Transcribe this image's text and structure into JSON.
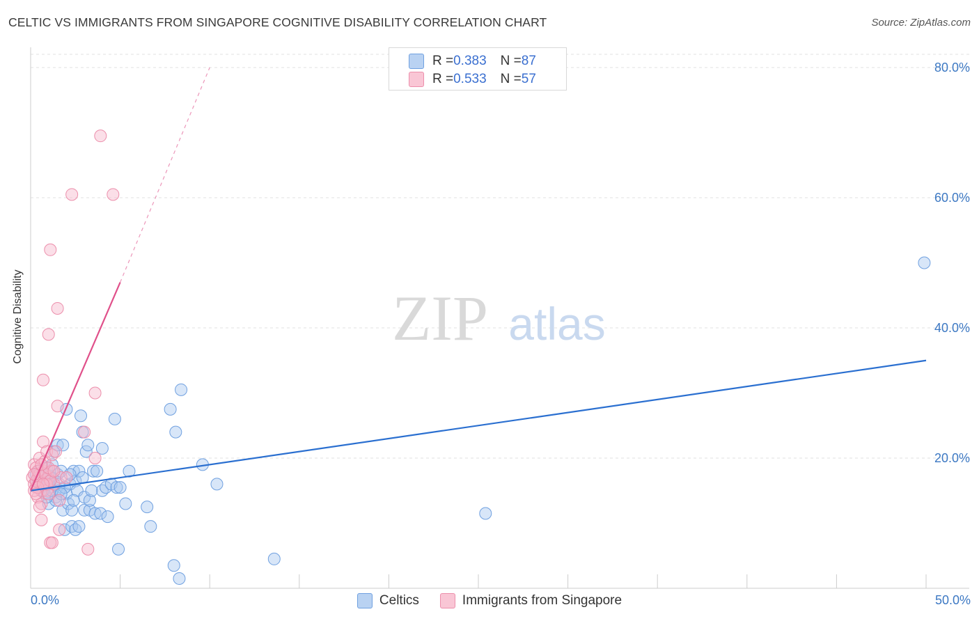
{
  "header": {
    "title": "CELTIC VS IMMIGRANTS FROM SINGAPORE COGNITIVE DISABILITY CORRELATION CHART",
    "source": "Source: ZipAtlas.com"
  },
  "legend": {
    "rows": [
      {
        "r_label": "R = ",
        "r_value": "0.383",
        "n_label": "N = ",
        "n_value": "87"
      },
      {
        "r_label": "R = ",
        "r_value": "0.533",
        "n_label": "N = ",
        "n_value": "57"
      }
    ]
  },
  "bottom_legend": {
    "celtics": "Celtics",
    "singapore": "Immigrants from Singapore"
  },
  "watermark": {
    "zip": "ZIP",
    "atlas": "atlas"
  },
  "colors": {
    "celtics_fill": "#a9c8f0",
    "celtics_stroke": "#6fa0e0",
    "celtics_line": "#2a6fd0",
    "singapore_fill": "#f7b8cb",
    "singapore_stroke": "#ec8eab",
    "singapore_line": "#e0508a",
    "axis_text": "#3c78c3"
  },
  "chart_data": {
    "type": "scatter",
    "title": "CELTIC VS IMMIGRANTS FROM SINGAPORE COGNITIVE DISABILITY CORRELATION CHART",
    "xlabel": "",
    "ylabel": "Cognitive Disability",
    "xlim": [
      0,
      50
    ],
    "ylim": [
      0,
      80
    ],
    "x_tick_labels": [
      "0.0%",
      "50.0%"
    ],
    "y_ticks": [
      20,
      40,
      60,
      80
    ],
    "y_tick_labels": [
      "20.0%",
      "40.0%",
      "60.0%",
      "80.0%"
    ],
    "grid": true,
    "legend_position": "top-center",
    "series": [
      {
        "name": "Celtics",
        "r": 0.383,
        "n": 87,
        "trend": {
          "x0": 0,
          "y0": 15.0,
          "x1": 50,
          "y1": 35.0
        },
        "points": [
          [
            0.3,
            17.5
          ],
          [
            0.4,
            16.5
          ],
          [
            0.5,
            18.0
          ],
          [
            0.5,
            16.0
          ],
          [
            0.6,
            15.0
          ],
          [
            0.7,
            17.0
          ],
          [
            0.8,
            14.5
          ],
          [
            0.8,
            16.0
          ],
          [
            0.9,
            18.5
          ],
          [
            1.0,
            13.0
          ],
          [
            1.0,
            16.5
          ],
          [
            1.1,
            15.5
          ],
          [
            1.2,
            17.0
          ],
          [
            1.2,
            19.0
          ],
          [
            1.3,
            21.0
          ],
          [
            1.4,
            14.0
          ],
          [
            1.4,
            13.5
          ],
          [
            1.5,
            17.5
          ],
          [
            1.5,
            22.0
          ],
          [
            1.6,
            16.0
          ],
          [
            1.7,
            18.0
          ],
          [
            1.8,
            12.0
          ],
          [
            1.8,
            22.0
          ],
          [
            1.9,
            9.0
          ],
          [
            2.0,
            27.5
          ],
          [
            2.0,
            14.5
          ],
          [
            2.1,
            13.0
          ],
          [
            2.2,
            16.0
          ],
          [
            2.3,
            9.5
          ],
          [
            2.3,
            12.0
          ],
          [
            2.4,
            18.0
          ],
          [
            2.5,
            16.5
          ],
          [
            2.5,
            9.0
          ],
          [
            2.6,
            15.0
          ],
          [
            2.7,
            9.5
          ],
          [
            2.7,
            18.0
          ],
          [
            2.8,
            26.5
          ],
          [
            2.9,
            24.0
          ],
          [
            2.9,
            17.0
          ],
          [
            3.0,
            14.0
          ],
          [
            3.0,
            12.0
          ],
          [
            3.1,
            21.0
          ],
          [
            3.2,
            22.0
          ],
          [
            3.3,
            12.0
          ],
          [
            3.3,
            13.5
          ],
          [
            3.5,
            18.0
          ],
          [
            3.6,
            11.5
          ],
          [
            3.7,
            18.0
          ],
          [
            3.9,
            11.5
          ],
          [
            4.0,
            21.5
          ],
          [
            4.0,
            15.0
          ],
          [
            4.2,
            15.5
          ],
          [
            4.3,
            11.0
          ],
          [
            4.5,
            16.0
          ],
          [
            4.7,
            26.0
          ],
          [
            4.8,
            15.5
          ],
          [
            4.9,
            6.0
          ],
          [
            5.0,
            15.5
          ],
          [
            5.3,
            13.0
          ],
          [
            5.5,
            18.0
          ],
          [
            6.5,
            12.5
          ],
          [
            6.7,
            9.5
          ],
          [
            7.8,
            27.5
          ],
          [
            8.0,
            3.5
          ],
          [
            8.1,
            24.0
          ],
          [
            8.3,
            1.5
          ],
          [
            8.4,
            30.5
          ],
          [
            9.6,
            19.0
          ],
          [
            10.4,
            16.0
          ],
          [
            13.6,
            4.5
          ],
          [
            25.4,
            11.5
          ],
          [
            49.9,
            50.0
          ],
          [
            0.6,
            15.5
          ],
          [
            0.9,
            14.0
          ],
          [
            1.1,
            17.0
          ],
          [
            1.3,
            16.0
          ],
          [
            1.6,
            15.0
          ],
          [
            2.2,
            17.5
          ],
          [
            0.5,
            17.0
          ],
          [
            0.7,
            15.0
          ],
          [
            1.0,
            16.0
          ],
          [
            1.9,
            15.5
          ],
          [
            2.4,
            13.5
          ],
          [
            3.4,
            15.0
          ],
          [
            0.8,
            17.5
          ],
          [
            1.2,
            15.0
          ],
          [
            1.7,
            14.5
          ]
        ]
      },
      {
        "name": "Immigrants from Singapore",
        "r": 0.533,
        "n": 57,
        "trend": {
          "x0": 0,
          "y0": 15.0,
          "x1": 5.0,
          "y1": 47.0,
          "dashed_to": {
            "x": 10.0,
            "y": 80.0
          }
        },
        "points": [
          [
            0.1,
            17.0
          ],
          [
            0.2,
            16.0
          ],
          [
            0.2,
            19.0
          ],
          [
            0.3,
            18.5
          ],
          [
            0.3,
            15.5
          ],
          [
            0.4,
            17.0
          ],
          [
            0.4,
            14.0
          ],
          [
            0.5,
            20.0
          ],
          [
            0.5,
            17.5
          ],
          [
            0.5,
            16.5
          ],
          [
            0.6,
            13.0
          ],
          [
            0.6,
            15.0
          ],
          [
            0.7,
            18.0
          ],
          [
            0.7,
            22.5
          ],
          [
            0.7,
            32.0
          ],
          [
            0.8,
            16.0
          ],
          [
            0.8,
            19.5
          ],
          [
            0.9,
            21.0
          ],
          [
            0.9,
            15.0
          ],
          [
            1.0,
            39.0
          ],
          [
            1.0,
            17.0
          ],
          [
            1.0,
            14.5
          ],
          [
            1.1,
            52.0
          ],
          [
            1.1,
            7.0
          ],
          [
            1.2,
            18.0
          ],
          [
            1.2,
            20.5
          ],
          [
            1.3,
            16.0
          ],
          [
            1.4,
            21.0
          ],
          [
            1.5,
            28.0
          ],
          [
            1.5,
            43.0
          ],
          [
            1.6,
            9.0
          ],
          [
            1.6,
            13.5
          ],
          [
            1.7,
            17.0
          ],
          [
            2.0,
            17.0
          ],
          [
            2.3,
            60.5
          ],
          [
            3.0,
            24.0
          ],
          [
            3.2,
            6.0
          ],
          [
            3.6,
            30.0
          ],
          [
            3.6,
            20.0
          ],
          [
            3.9,
            69.5
          ],
          [
            4.6,
            60.5
          ],
          [
            0.2,
            15.0
          ],
          [
            0.3,
            16.5
          ],
          [
            0.4,
            18.0
          ],
          [
            0.5,
            12.5
          ],
          [
            0.6,
            10.5
          ],
          [
            0.8,
            17.5
          ],
          [
            0.9,
            16.0
          ],
          [
            1.0,
            18.5
          ],
          [
            1.1,
            16.5
          ],
          [
            0.2,
            17.5
          ],
          [
            0.4,
            15.5
          ],
          [
            0.6,
            19.0
          ],
          [
            0.7,
            16.0
          ],
          [
            1.3,
            18.0
          ],
          [
            1.2,
            7.0
          ],
          [
            0.3,
            14.5
          ]
        ]
      }
    ]
  }
}
